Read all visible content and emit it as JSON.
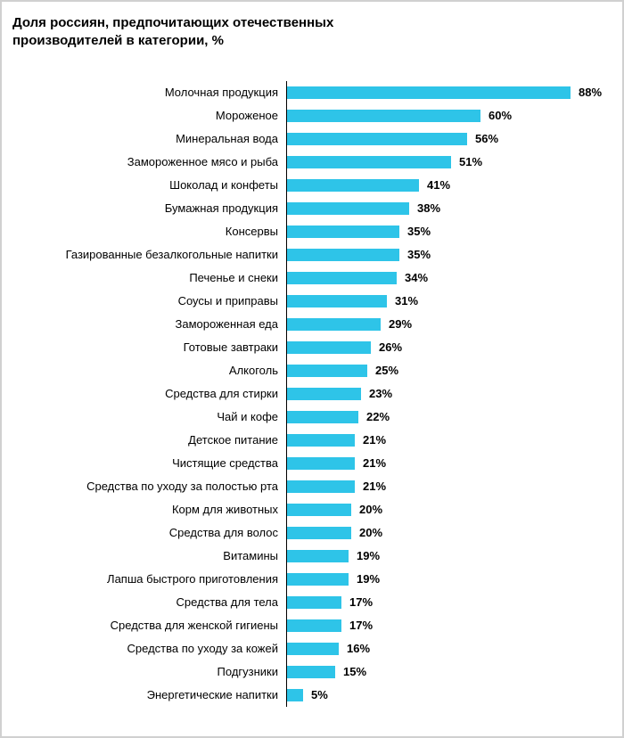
{
  "chart_data": {
    "type": "bar",
    "orientation": "horizontal",
    "title": "Доля россиян, предпочитающих отечественных производителей в категории, %",
    "categories": [
      "Молочная продукция",
      "Мороженое",
      "Минеральная вода",
      "Замороженное мясо и рыба",
      "Шоколад и конфеты",
      "Бумажная продукция",
      "Консервы",
      "Газированные безалкогольные напитки",
      "Печенье и снеки",
      "Соусы и приправы",
      "Замороженная еда",
      "Готовые завтраки",
      "Алкоголь",
      "Средства для стирки",
      "Чай и кофе",
      "Детское питание",
      "Чистящие средства",
      "Средства по уходу за полостью рта",
      "Корм для животных",
      "Средства для волос",
      "Витамины",
      "Лапша быстрого приготовления",
      "Средства для тела",
      "Средства для женской гигиены",
      "Средства по уходу за кожей",
      "Подгузники",
      "Энергетические напитки"
    ],
    "values": [
      88,
      60,
      56,
      51,
      41,
      38,
      35,
      35,
      34,
      31,
      29,
      26,
      25,
      23,
      22,
      21,
      21,
      21,
      20,
      20,
      19,
      19,
      17,
      17,
      16,
      15,
      5
    ],
    "value_suffix": "%",
    "bar_color": "#2ec4e8",
    "axis_color": "#000000",
    "grid": false,
    "value_labels": true,
    "xlim": [
      0,
      100
    ]
  }
}
